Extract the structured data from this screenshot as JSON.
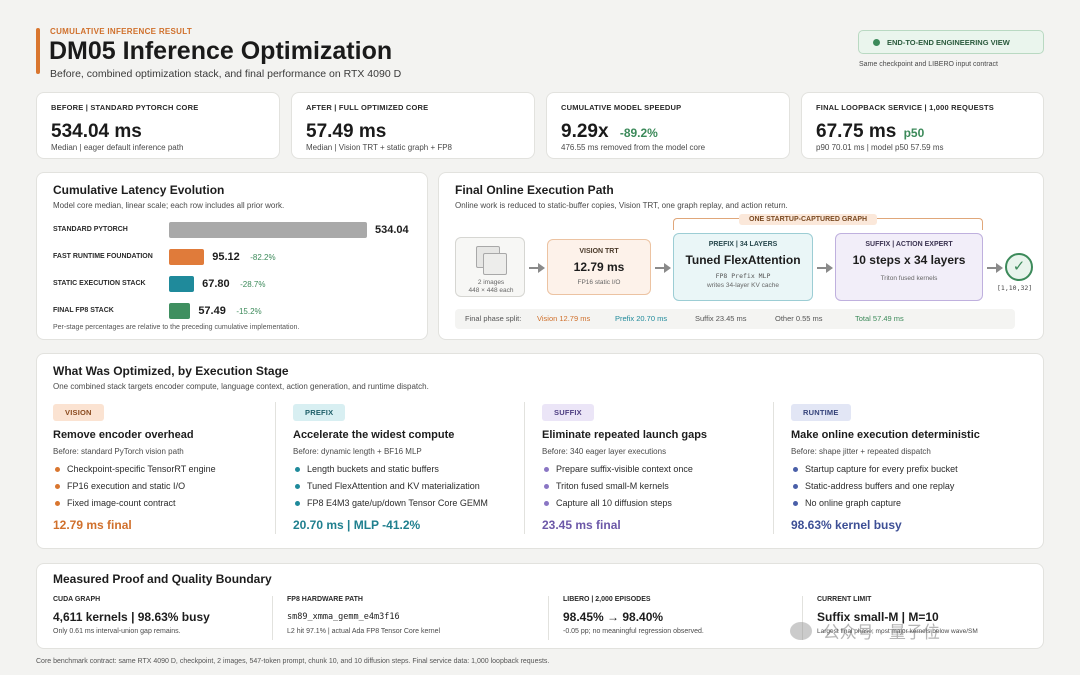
{
  "header": {
    "eyebrow": "CUMULATIVE INFERENCE RESULT",
    "title": "DM05 Inference Optimization",
    "subtitle": "Before, combined optimization stack, and final performance on RTX 4090 D",
    "view_badge": "END-TO-END ENGINEERING VIEW",
    "contract_note": "Same checkpoint and LIBERO input contract"
  },
  "metrics": [
    {
      "label": "BEFORE | STANDARD PYTORCH CORE",
      "value": "534.04 ms",
      "extra": "",
      "sub": "Median | eager default inference path"
    },
    {
      "label": "AFTER | FULL OPTIMIZED CORE",
      "value": "57.49 ms",
      "extra": "",
      "sub": "Median | Vision TRT + static graph + FP8"
    },
    {
      "label": "CUMULATIVE MODEL SPEEDUP",
      "value": "9.29x",
      "extra": "-89.2%",
      "sub": "476.55 ms removed from the model core"
    },
    {
      "label": "FINAL LOOPBACK SERVICE | 1,000 REQUESTS",
      "value": "67.75 ms",
      "extra": "p50",
      "sub": "p90 70.01 ms | model p50 57.59 ms"
    }
  ],
  "latency": {
    "title": "Cumulative Latency Evolution",
    "subtitle": "Model core median, linear scale; each row includes all prior work.",
    "footnote": "Per-stage percentages are relative to the preceding cumulative implementation.",
    "rows": [
      {
        "name": "STANDARD PYTORCH",
        "value": "534.04",
        "pct": ""
      },
      {
        "name": "FAST RUNTIME FOUNDATION",
        "value": "95.12",
        "pct": "-82.2%"
      },
      {
        "name": "STATIC EXECUTION STACK",
        "value": "67.80",
        "pct": "-28.7%"
      },
      {
        "name": "FINAL FP8 STACK",
        "value": "57.49",
        "pct": "-15.2%"
      }
    ]
  },
  "chart_data": {
    "type": "bar",
    "categories": [
      "STANDARD PYTORCH",
      "FAST RUNTIME FOUNDATION",
      "STATIC EXECUTION STACK",
      "FINAL FP8 STACK"
    ],
    "values": [
      534.04,
      95.12,
      67.8,
      57.49
    ],
    "colors": [
      "#a9a9a9",
      "#e07b3a",
      "#1f8a9b",
      "#3f8f60"
    ],
    "title": "Cumulative Latency Evolution",
    "xlim": [
      0,
      534.04
    ]
  },
  "exec": {
    "title": "Final Online Execution Path",
    "subtitle": "Online work is reduced to static-buffer copies, Vision TRT, one graph replay, and action return.",
    "graph_label": "ONE STARTUP-CAPTURED GRAPH",
    "input_label": "2 images\n448 × 448 each",
    "vision": {
      "label": "VISION TRT",
      "value": "12.79 ms",
      "sub": "FP16 static I/O"
    },
    "prefix": {
      "label": "PREFIX | 34 LAYERS",
      "value": "Tuned FlexAttention",
      "code": "FP8 Prefix MLP",
      "sub": "writes 34-layer KV cache"
    },
    "suffix": {
      "label": "SUFFIX | ACTION EXPERT",
      "value": "10 steps x 34 layers",
      "sub": "Triton fused kernels"
    },
    "output": "[1,10,32]",
    "split": {
      "label": "Final phase split:",
      "vision": "Vision 12.79 ms",
      "prefix": "Prefix 20.70 ms",
      "suffix": "Suffix 23.45 ms",
      "other": "Other 0.55 ms",
      "total": "Total 57.49 ms"
    }
  },
  "stages": {
    "title": "What Was Optimized, by Execution Stage",
    "subtitle": "One combined stack targets encoder compute, language context, action generation, and runtime dispatch.",
    "items": [
      {
        "pill": "VISION",
        "title": "Remove encoder overhead",
        "before": "Before: standard PyTorch vision path",
        "bullets": [
          "Checkpoint-specific TensorRT engine",
          "FP16 execution and static I/O",
          "Fixed image-count contract"
        ],
        "result": "12.79 ms final"
      },
      {
        "pill": "PREFIX",
        "title": "Accelerate the widest compute",
        "before": "Before: dynamic length + BF16 MLP",
        "bullets": [
          "Length buckets and static buffers",
          "Tuned FlexAttention and KV materialization",
          "FP8 E4M3 gate/up/down Tensor Core GEMM"
        ],
        "result": "20.70 ms | MLP -41.2%"
      },
      {
        "pill": "SUFFIX",
        "title": "Eliminate repeated launch gaps",
        "before": "Before: 340 eager layer executions",
        "bullets": [
          "Prepare suffix-visible context once",
          "Triton fused small-M kernels",
          "Capture all 10 diffusion steps"
        ],
        "result": "23.45 ms final"
      },
      {
        "pill": "RUNTIME",
        "title": "Make online execution deterministic",
        "before": "Before: shape jitter + repeated dispatch",
        "bullets": [
          "Startup capture for every prefix bucket",
          "Static-address buffers and one replay",
          "No online graph capture"
        ],
        "result": "98.63% kernel busy"
      }
    ]
  },
  "proof": {
    "title": "Measured Proof and Quality Boundary",
    "items": [
      {
        "label": "CUDA GRAPH",
        "value": "4,611 kernels | 98.63% busy",
        "sub": "Only 0.61 ms interval-union gap remains."
      },
      {
        "label": "FP8 HARDWARE PATH",
        "value": "sm89_xmma_gemm_e4m3f16",
        "sub": "L2 hit 97.1% | actual Ada FP8 Tensor Core kernel"
      },
      {
        "label": "LIBERO | 2,000 EPISODES",
        "value": "98.45% → 98.40%",
        "sub": "-0.05 pp; no meaningful regression observed."
      },
      {
        "label": "CURRENT LIMIT",
        "value": "Suffix small-M | M=10",
        "sub": "Largest final phase; most major kernels below wave/SM"
      }
    ]
  },
  "footer": "Core benchmark contract: same RTX 4090 D, checkpoint, 2 images, 547-token prompt, chunk 10, and 10 diffusion steps. Final service data: 1,000 loopback requests.",
  "watermark": "公众号 · 量子位"
}
